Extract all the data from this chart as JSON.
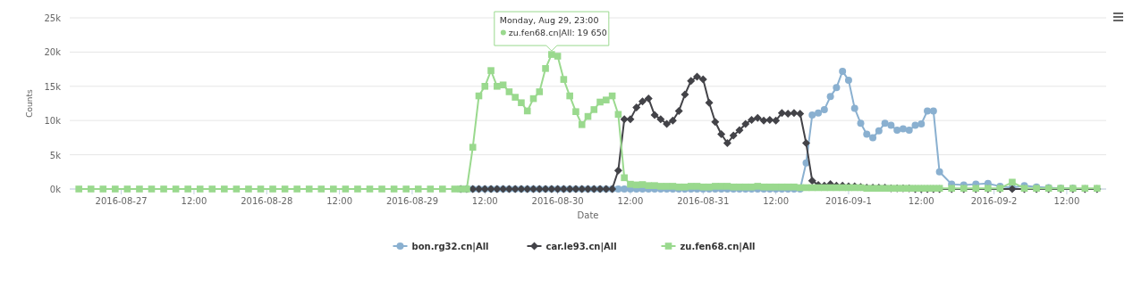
{
  "chart_data": {
    "type": "line",
    "xlabel": "Date",
    "ylabel": "Counts",
    "ylim": [
      0,
      25000
    ],
    "yticks": [
      {
        "value": 0,
        "label": "0k"
      },
      {
        "value": 5000,
        "label": "5k"
      },
      {
        "value": 10000,
        "label": "10k"
      },
      {
        "value": 15000,
        "label": "15k"
      },
      {
        "value": 20000,
        "label": "20k"
      },
      {
        "value": 25000,
        "label": "25k"
      }
    ],
    "xlim": [
      "2016-08-26T15:30",
      "2016-09-02T18:30"
    ],
    "xticks": [
      "2016-08-27",
      {
        "value": "2016-08-27T12:00",
        "label": "12:00"
      },
      "2016-08-28",
      {
        "value": "2016-08-28T12:00",
        "label": "12:00"
      },
      "2016-08-29",
      {
        "value": "2016-08-29T12:00",
        "label": "12:00"
      },
      "2016-08-30",
      {
        "value": "2016-08-30T12:00",
        "label": "12:00"
      },
      "2016-08-31",
      {
        "value": "2016-08-31T12:00",
        "label": "12:00"
      },
      {
        "value": "2016-09-01",
        "label": "2016-09-1"
      },
      {
        "value": "2016-09-01T12:00",
        "label": "12:00"
      },
      {
        "value": "2016-09-02",
        "label": "2016-09-2"
      },
      {
        "value": "2016-09-02T12:00",
        "label": "12:00"
      }
    ],
    "grid": "y",
    "legend": "bottom",
    "line_style": "solid",
    "annotations": [
      {
        "text": "Monday, Aug 29, 23:00\nzu.fen68.cn|All: 19 650",
        "x": "2016-08-29T23:00",
        "y": 19650
      }
    ],
    "x": [
      "2016-08-26T17:00",
      "2016-08-26T19:00",
      "2016-08-26T21:00",
      "2016-08-26T23:00",
      "2016-08-27T01:00",
      "2016-08-27T03:00",
      "2016-08-27T05:00",
      "2016-08-27T07:00",
      "2016-08-27T09:00",
      "2016-08-27T11:00",
      "2016-08-27T13:00",
      "2016-08-27T15:00",
      "2016-08-27T17:00",
      "2016-08-27T19:00",
      "2016-08-27T21:00",
      "2016-08-27T23:00",
      "2016-08-28T01:00",
      "2016-08-28T03:00",
      "2016-08-28T05:00",
      "2016-08-28T07:00",
      "2016-08-28T09:00",
      "2016-08-28T11:00",
      "2016-08-28T13:00",
      "2016-08-28T15:00",
      "2016-08-28T17:00",
      "2016-08-28T19:00",
      "2016-08-28T21:00",
      "2016-08-28T23:00",
      "2016-08-29T01:00",
      "2016-08-29T03:00",
      "2016-08-29T05:00",
      "2016-08-29T07:00",
      "2016-08-29T08:00",
      "2016-08-29T09:00",
      "2016-08-29T10:00",
      "2016-08-29T11:00",
      "2016-08-29T12:00",
      "2016-08-29T13:00",
      "2016-08-29T14:00",
      "2016-08-29T15:00",
      "2016-08-29T16:00",
      "2016-08-29T17:00",
      "2016-08-29T18:00",
      "2016-08-29T19:00",
      "2016-08-29T20:00",
      "2016-08-29T21:00",
      "2016-08-29T22:00",
      "2016-08-29T23:00",
      "2016-08-30T00:00",
      "2016-08-30T01:00",
      "2016-08-30T02:00",
      "2016-08-30T03:00",
      "2016-08-30T04:00",
      "2016-08-30T05:00",
      "2016-08-30T06:00",
      "2016-08-30T07:00",
      "2016-08-30T08:00",
      "2016-08-30T09:00",
      "2016-08-30T10:00",
      "2016-08-30T11:00",
      "2016-08-30T12:00",
      "2016-08-30T13:00",
      "2016-08-30T14:00",
      "2016-08-30T15:00",
      "2016-08-30T16:00",
      "2016-08-30T17:00",
      "2016-08-30T18:00",
      "2016-08-30T19:00",
      "2016-08-30T20:00",
      "2016-08-30T21:00",
      "2016-08-30T22:00",
      "2016-08-30T23:00",
      "2016-08-31T00:00",
      "2016-08-31T01:00",
      "2016-08-31T02:00",
      "2016-08-31T03:00",
      "2016-08-31T04:00",
      "2016-08-31T05:00",
      "2016-08-31T06:00",
      "2016-08-31T07:00",
      "2016-08-31T08:00",
      "2016-08-31T09:00",
      "2016-08-31T10:00",
      "2016-08-31T11:00",
      "2016-08-31T12:00",
      "2016-08-31T13:00",
      "2016-08-31T14:00",
      "2016-08-31T15:00",
      "2016-08-31T16:00",
      "2016-08-31T17:00",
      "2016-08-31T18:00",
      "2016-08-31T19:00",
      "2016-08-31T20:00",
      "2016-08-31T21:00",
      "2016-08-31T22:00",
      "2016-08-31T23:00",
      "2016-09-01T00:00",
      "2016-09-01T01:00",
      "2016-09-01T02:00",
      "2016-09-01T03:00",
      "2016-09-01T04:00",
      "2016-09-01T05:00",
      "2016-09-01T06:00",
      "2016-09-01T07:00",
      "2016-09-01T08:00",
      "2016-09-01T09:00",
      "2016-09-01T10:00",
      "2016-09-01T11:00",
      "2016-09-01T12:00",
      "2016-09-01T13:00",
      "2016-09-01T14:00",
      "2016-09-01T15:00",
      "2016-09-01T17:00",
      "2016-09-01T19:00",
      "2016-09-01T21:00",
      "2016-09-01T23:00",
      "2016-09-02T01:00",
      "2016-09-02T03:00",
      "2016-09-02T05:00",
      "2016-09-02T07:00",
      "2016-09-02T09:00",
      "2016-09-02T11:00",
      "2016-09-02T13:00",
      "2016-09-02T15:00",
      "2016-09-02T17:00"
    ],
    "series": [
      {
        "name": "bon.rg32.cn|All",
        "color": "#8ab0d0",
        "marker": "circle",
        "values": [
          null,
          null,
          null,
          null,
          null,
          null,
          null,
          null,
          null,
          null,
          null,
          null,
          null,
          null,
          null,
          null,
          null,
          null,
          null,
          null,
          null,
          null,
          null,
          null,
          null,
          null,
          null,
          null,
          null,
          null,
          null,
          null,
          0,
          0,
          0,
          0,
          0,
          0,
          0,
          0,
          0,
          0,
          0,
          0,
          0,
          0,
          0,
          0,
          0,
          0,
          0,
          0,
          0,
          0,
          0,
          0,
          0,
          0,
          0,
          0,
          0,
          0,
          0,
          0,
          0,
          0,
          0,
          0,
          0,
          0,
          0,
          0,
          0,
          0,
          0,
          0,
          0,
          0,
          0,
          0,
          0,
          0,
          0,
          0,
          0,
          0,
          0,
          0,
          0,
          3800,
          10800,
          11100,
          11600,
          13500,
          14800,
          17200,
          15900,
          11800,
          9600,
          8000,
          7500,
          8500,
          9600,
          9300,
          8600,
          8800,
          8600,
          9300,
          9500,
          11400,
          11400,
          2500,
          700,
          600,
          700,
          800,
          400,
          200,
          500,
          300,
          200,
          100,
          100,
          null,
          null
        ]
      },
      {
        "name": "car.le93.cn|All",
        "color": "#434348",
        "marker": "diamond",
        "values": [
          null,
          null,
          null,
          null,
          null,
          null,
          null,
          null,
          null,
          null,
          null,
          null,
          null,
          null,
          null,
          null,
          null,
          null,
          null,
          null,
          null,
          null,
          null,
          null,
          null,
          null,
          null,
          null,
          null,
          null,
          null,
          null,
          0,
          0,
          0,
          0,
          0,
          0,
          0,
          0,
          0,
          0,
          0,
          0,
          0,
          0,
          0,
          0,
          0,
          0,
          0,
          0,
          0,
          0,
          0,
          0,
          0,
          0,
          2700,
          10200,
          10200,
          11900,
          12800,
          13200,
          10800,
          10200,
          9500,
          10000,
          11400,
          13800,
          15800,
          16400,
          16000,
          12600,
          9800,
          8000,
          6700,
          7800,
          8600,
          9500,
          10100,
          10400,
          10000,
          10100,
          10000,
          11100,
          11000,
          11100,
          11000,
          6700,
          1200,
          600,
          500,
          700,
          500,
          500,
          400,
          400,
          300,
          200,
          200,
          200,
          200,
          100,
          100,
          100,
          100,
          0,
          0,
          0,
          0,
          0,
          0,
          0,
          0,
          0,
          0,
          0,
          0,
          0,
          0,
          0,
          0,
          0,
          0
        ]
      },
      {
        "name": "zu.fen68.cn|All",
        "color": "#9ad98e",
        "marker": "square",
        "values": [
          0,
          0,
          0,
          0,
          0,
          0,
          0,
          0,
          0,
          0,
          0,
          0,
          0,
          0,
          0,
          0,
          0,
          0,
          0,
          0,
          0,
          0,
          0,
          0,
          0,
          0,
          0,
          0,
          0,
          0,
          0,
          0,
          0,
          0,
          6100,
          13600,
          15000,
          17300,
          15000,
          15200,
          14200,
          13400,
          12600,
          11400,
          13200,
          14200,
          17600,
          19650,
          19400,
          16000,
          13600,
          11300,
          9400,
          10600,
          11600,
          12700,
          13000,
          13600,
          10900,
          1650,
          700,
          600,
          650,
          500,
          500,
          400,
          400,
          400,
          300,
          300,
          400,
          400,
          300,
          300,
          400,
          400,
          400,
          300,
          300,
          300,
          300,
          400,
          300,
          300,
          300,
          300,
          300,
          300,
          200,
          200,
          200,
          200,
          200,
          200,
          200,
          200,
          200,
          200,
          200,
          100,
          100,
          100,
          100,
          100,
          100,
          100,
          100,
          100,
          100,
          100,
          100,
          100,
          100,
          100,
          100,
          100,
          100,
          1000,
          100,
          100,
          100,
          100,
          100,
          100,
          100
        ]
      }
    ]
  }
}
